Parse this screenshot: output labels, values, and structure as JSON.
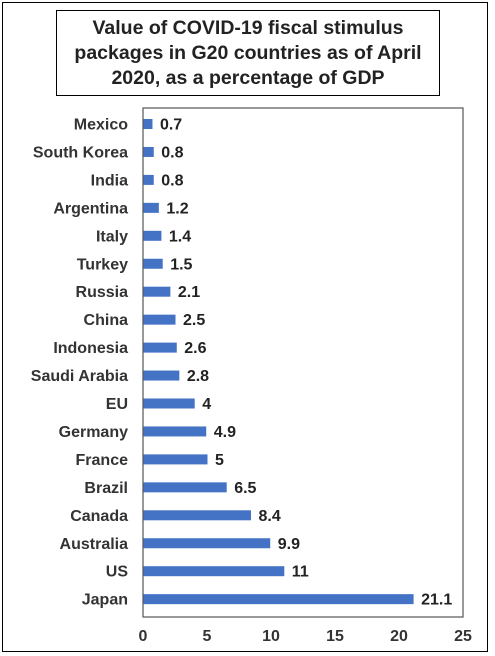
{
  "chart_data": {
    "type": "bar",
    "orientation": "horizontal",
    "title": "Value of COVID-19 fiscal stimulus packages in G20 countries as of April 2020, as a percentage of GDP",
    "categories": [
      "Mexico",
      "South Korea",
      "India",
      "Argentina",
      "Italy",
      "Turkey",
      "Russia",
      "China",
      "Indonesia",
      "Saudi Arabia",
      "EU",
      "Germany",
      "France",
      "Brazil",
      "Canada",
      "Australia",
      "US",
      "Japan"
    ],
    "values": [
      0.7,
      0.8,
      0.8,
      1.2,
      1.4,
      1.5,
      2.1,
      2.5,
      2.6,
      2.8,
      4,
      4.9,
      5,
      6.5,
      8.4,
      9.9,
      11,
      21.1
    ],
    "value_labels": [
      "0.7",
      "0.8",
      "0.8",
      "1.2",
      "1.4",
      "1.5",
      "2.1",
      "2.5",
      "2.6",
      "2.8",
      "4",
      "4.9",
      "5",
      "6.5",
      "8.4",
      "9.9",
      "11",
      "21.1"
    ],
    "xlim": [
      0,
      25
    ],
    "xticks": [
      "0",
      "5",
      "10",
      "15",
      "20",
      "25"
    ],
    "xlabel": "",
    "ylabel": "",
    "grid": false,
    "legend": "none",
    "bar_color": "#4472c4"
  }
}
